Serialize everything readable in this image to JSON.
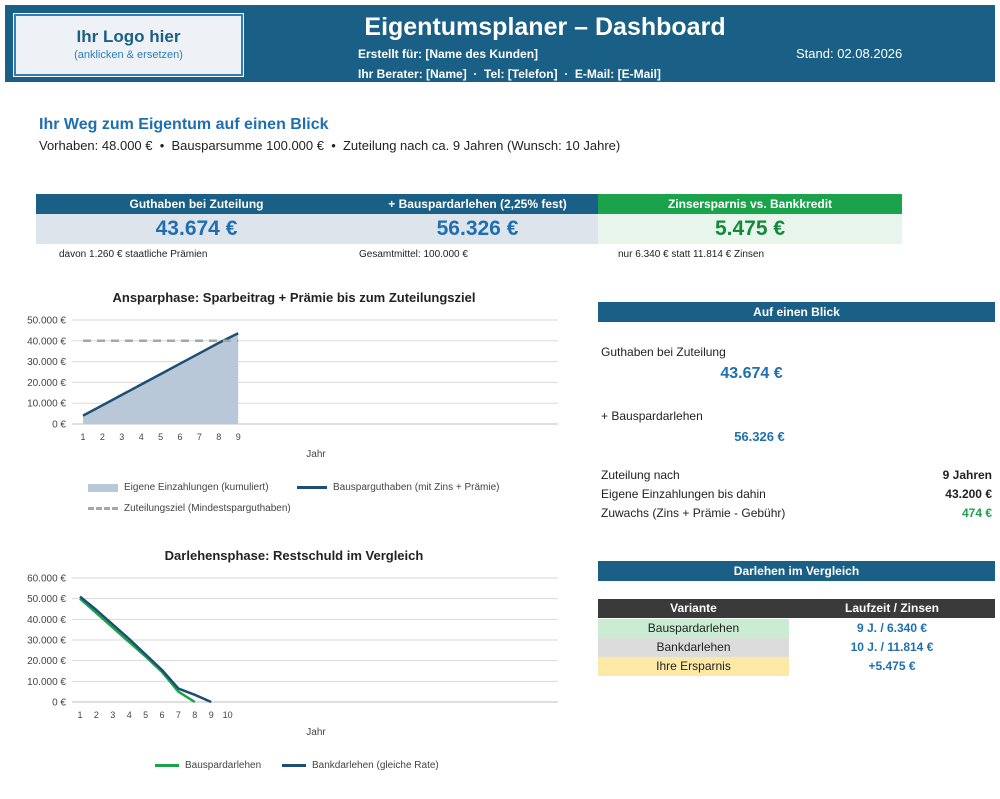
{
  "header": {
    "logo_text": "Ihr Logo hier",
    "logo_sub": "(anklicken & ersetzen)",
    "title": "Eigentumsplaner – Dashboard",
    "created_for": "Erstellt für: [Name des Kunden]",
    "advisor": "Ihr Berater: [Name]  ·  Tel: [Telefon]  ·  E-Mail: [E-Mail]",
    "date": "Stand: 02.08.2026"
  },
  "intro": {
    "title": "Ihr Weg zum Eigentum auf einen Blick",
    "subtitle": "Vorhaben: 48.000 €  •  Bausparsumme 100.000 €  •  Zuteilung nach ca. 9 Jahren (Wunsch: 10 Jahre)"
  },
  "kpis": [
    {
      "label": "Guthaben bei Zuteilung",
      "value": "43.674 €",
      "note": "davon 1.260 € staatliche Prämien"
    },
    {
      "label": "+ Bauspardarlehen (2,25% fest)",
      "value": "56.326 €",
      "note": "Gesamtmittel: 100.000 €"
    },
    {
      "label": "Zinsersparnis vs. Bankkredit",
      "value": "5.475 €",
      "note": "nur 6.340 € statt 11.814 € Zinsen"
    }
  ],
  "colors": {
    "header": "#1a5f85",
    "accent_blue": "#1f6fb0",
    "green": "#1aa34a",
    "table_head": "#3a3a3a"
  },
  "chart_data": [
    {
      "type": "area",
      "title": "Ansparphase: Sparbeitrag + Prämie bis zum Zuteilungsziel",
      "xlabel": "Jahr",
      "ylabel": "",
      "x": [
        1,
        2,
        3,
        4,
        5,
        6,
        7,
        8,
        9
      ],
      "ylim": [
        0,
        50000
      ],
      "yticks": [
        "0 €",
        "10.000 €",
        "20.000 €",
        "30.000 €",
        "40.000 €",
        "50.000 €"
      ],
      "series": [
        {
          "name": "Eigene Einzahlungen (kumuliert)",
          "kind": "area",
          "color": "#b9c8d9",
          "values": [
            4800,
            9600,
            14400,
            19200,
            24000,
            28800,
            33600,
            38400,
            43200
          ]
        },
        {
          "name": "Bausparguthaben (mit Zins + Prämie)",
          "kind": "line",
          "color": "#1d4f73",
          "values": [
            4000,
            9000,
            14000,
            19000,
            24000,
            29000,
            34000,
            39000,
            43674
          ]
        },
        {
          "name": "Zuteilungsziel (Mindestsparguthaben)",
          "kind": "dashed",
          "color": "#a6a6a6",
          "values": [
            40000,
            40000,
            40000,
            40000,
            40000,
            40000,
            40000,
            40000,
            40000
          ]
        }
      ],
      "grid": true,
      "legend": "bottom"
    },
    {
      "type": "line",
      "title": "Darlehensphase: Restschuld im Vergleich",
      "xlabel": "Jahr",
      "ylabel": "",
      "x": [
        1,
        2,
        3,
        4,
        5,
        6,
        7,
        8,
        9,
        10
      ],
      "ylim": [
        0,
        60000
      ],
      "yticks": [
        "0 €",
        "10.000 €",
        "20.000 €",
        "30.000 €",
        "40.000 €",
        "50.000 €",
        "60.000 €"
      ],
      "series": [
        {
          "name": "Bauspardarlehen",
          "color": "#1aa34a",
          "values": [
            50000,
            43000,
            36000,
            29000,
            22000,
            14500,
            5000,
            0,
            null,
            null
          ]
        },
        {
          "name": "Bankdarlehen (gleiche Rate)",
          "color": "#1d4f73",
          "values": [
            51000,
            44500,
            37500,
            30500,
            23000,
            15500,
            6500,
            3500,
            0,
            null
          ]
        }
      ],
      "grid": true,
      "legend": "bottom"
    }
  ],
  "glance": {
    "title": "Auf einen Blick",
    "guthaben_label": "Guthaben bei Zuteilung",
    "guthaben_value": "43.674 €",
    "darlehen_label": "+ Bauspardarlehen",
    "darlehen_value": "56.326 €",
    "rows": [
      {
        "label": "Zuteilung nach",
        "value": "9 Jahren"
      },
      {
        "label": "Eigene Einzahlungen bis dahin",
        "value": "43.200 €"
      },
      {
        "label": "Zuwachs (Zins + Prämie - Gebühr)",
        "value": "474 €"
      }
    ]
  },
  "compare": {
    "title": "Darlehen im Vergleich",
    "headers": [
      "Variante",
      "Laufzeit / Zinsen"
    ],
    "rows": [
      {
        "variant": "Bauspardarlehen",
        "value": "9 J. / 6.340 €",
        "bg": "#c9ecd2"
      },
      {
        "variant": "Bankdarlehen",
        "value": "10 J. / 11.814 €",
        "bg": "#dcdcdc"
      },
      {
        "variant": "Ihre Ersparnis",
        "value": "+5.475 €",
        "bg": "#fde9a6"
      }
    ]
  }
}
